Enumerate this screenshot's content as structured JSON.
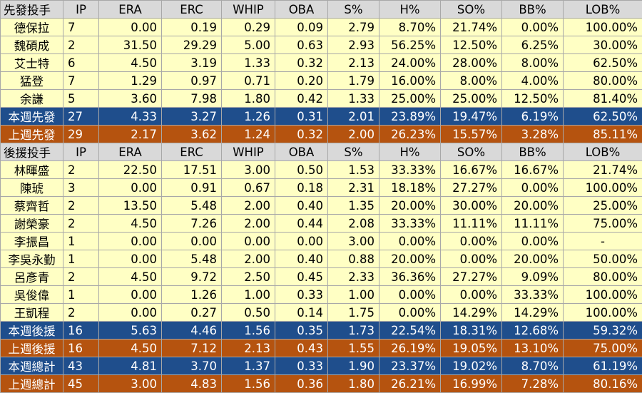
{
  "columns": [
    "IP",
    "ERA",
    "ERC",
    "WHIP",
    "OBA",
    "S%",
    "H%",
    "SO%",
    "BB%",
    "LOB%"
  ],
  "sections": [
    {
      "header": "先發投手",
      "pitchers": [
        [
          "德保拉",
          "7",
          "0.00",
          "0.19",
          "0.29",
          "0.09",
          "2.79",
          "8.70%",
          "21.74%",
          "0.00%",
          "100.00%"
        ],
        [
          "魏碩成",
          "2",
          "31.50",
          "29.29",
          "5.00",
          "0.63",
          "2.93",
          "56.25%",
          "12.50%",
          "6.25%",
          "30.00%"
        ],
        [
          "艾士特",
          "6",
          "4.50",
          "3.19",
          "1.33",
          "0.32",
          "2.13",
          "24.00%",
          "28.00%",
          "8.00%",
          "62.50%"
        ],
        [
          "猛登",
          "7",
          "1.29",
          "0.97",
          "0.71",
          "0.20",
          "1.79",
          "16.00%",
          "8.00%",
          "4.00%",
          "80.00%"
        ],
        [
          "余謙",
          "5",
          "3.60",
          "7.98",
          "1.80",
          "0.42",
          "1.33",
          "25.00%",
          "25.00%",
          "12.50%",
          "81.40%"
        ]
      ],
      "summaries": [
        {
          "style": "blue",
          "cells": [
            "本週先發",
            "27",
            "4.33",
            "3.27",
            "1.26",
            "0.31",
            "2.01",
            "23.89%",
            "19.47%",
            "6.19%",
            "62.50%"
          ]
        },
        {
          "style": "orange",
          "cells": [
            "上週先發",
            "29",
            "2.17",
            "3.62",
            "1.24",
            "0.32",
            "2.00",
            "26.23%",
            "15.57%",
            "3.28%",
            "85.11%"
          ]
        }
      ]
    },
    {
      "header": "後援投手",
      "pitchers": [
        [
          "林暉盛",
          "2",
          "22.50",
          "17.51",
          "3.00",
          "0.50",
          "1.53",
          "33.33%",
          "16.67%",
          "16.67%",
          "21.74%"
        ],
        [
          "陳琥",
          "3",
          "0.00",
          "0.91",
          "0.67",
          "0.18",
          "2.31",
          "18.18%",
          "27.27%",
          "0.00%",
          "100.00%"
        ],
        [
          "蔡齊哲",
          "2",
          "13.50",
          "5.48",
          "2.00",
          "0.40",
          "1.35",
          "20.00%",
          "30.00%",
          "20.00%",
          "25.00%"
        ],
        [
          "謝榮豪",
          "2",
          "4.50",
          "7.26",
          "2.00",
          "0.44",
          "2.08",
          "33.33%",
          "11.11%",
          "11.11%",
          "75.00%"
        ],
        [
          "李振昌",
          "1",
          "0.00",
          "0.00",
          "0.00",
          "0.00",
          "3.00",
          "0.00%",
          "0.00%",
          "0.00%",
          "-"
        ],
        [
          "李吳永勤",
          "1",
          "0.00",
          "5.48",
          "2.00",
          "0.40",
          "0.88",
          "20.00%",
          "0.00%",
          "20.00%",
          "50.00%"
        ],
        [
          "呂彥青",
          "2",
          "4.50",
          "9.72",
          "2.50",
          "0.45",
          "2.33",
          "36.36%",
          "27.27%",
          "9.09%",
          "80.00%"
        ],
        [
          "吳俊偉",
          "1",
          "0.00",
          "1.26",
          "1.00",
          "0.33",
          "1.00",
          "0.00%",
          "0.00%",
          "33.33%",
          "100.00%"
        ],
        [
          "王凱程",
          "2",
          "0.00",
          "0.27",
          "0.50",
          "0.14",
          "1.75",
          "0.00%",
          "14.29%",
          "14.29%",
          "100.00%"
        ]
      ],
      "summaries": [
        {
          "style": "blue",
          "cells": [
            "本週後援",
            "16",
            "5.63",
            "4.46",
            "1.56",
            "0.35",
            "1.73",
            "22.54%",
            "18.31%",
            "12.68%",
            "59.32%"
          ]
        },
        {
          "style": "orange",
          "cells": [
            "上週後援",
            "16",
            "4.50",
            "7.12",
            "2.13",
            "0.43",
            "1.55",
            "26.19%",
            "19.05%",
            "13.10%",
            "75.00%"
          ]
        },
        {
          "style": "blue",
          "cells": [
            "本週總計",
            "43",
            "4.81",
            "3.70",
            "1.37",
            "0.33",
            "1.90",
            "23.37%",
            "19.02%",
            "8.70%",
            "61.19%"
          ]
        },
        {
          "style": "orange",
          "cells": [
            "上週總計",
            "45",
            "3.00",
            "4.83",
            "1.56",
            "0.36",
            "1.80",
            "26.21%",
            "16.99%",
            "7.28%",
            "80.16%"
          ]
        }
      ]
    }
  ],
  "colors": {
    "header_bg": "#d9d9d9",
    "row_bg": "#ffffc4",
    "summary_blue": "#1f4e8c",
    "summary_orange": "#b5530f",
    "summary_text": "#ffffff"
  }
}
